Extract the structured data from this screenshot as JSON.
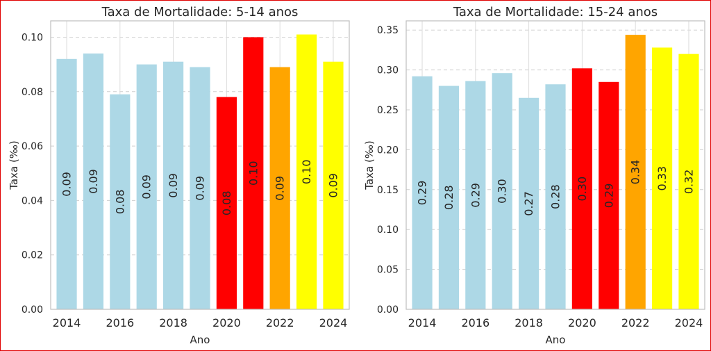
{
  "chart_data": [
    {
      "type": "bar",
      "title": "Taxa de Mortalidade: 5-14 anos",
      "xlabel": "Ano",
      "ylabel": "Taxa (‰)",
      "ylim": [
        0,
        0.106
      ],
      "yticks": [
        "0.00",
        "0.02",
        "0.04",
        "0.06",
        "0.08",
        "0.10"
      ],
      "ytick_values": [
        0,
        0.02,
        0.04,
        0.06,
        0.08,
        0.1
      ],
      "xticks": [
        "2014",
        "2016",
        "2018",
        "2020",
        "2022",
        "2024"
      ],
      "grid": true,
      "categories": [
        "2014",
        "2015",
        "2016",
        "2017",
        "2018",
        "2019",
        "2020",
        "2021",
        "2022",
        "2023",
        "2024"
      ],
      "values": [
        0.092,
        0.094,
        0.079,
        0.09,
        0.091,
        0.089,
        0.078,
        0.1,
        0.089,
        0.101,
        0.091
      ],
      "labels": [
        "0.09",
        "0.09",
        "0.08",
        "0.09",
        "0.09",
        "0.09",
        "0.08",
        "0.10",
        "0.09",
        "0.10",
        "0.09"
      ],
      "colors": [
        "#add8e6",
        "#add8e6",
        "#add8e6",
        "#add8e6",
        "#add8e6",
        "#add8e6",
        "#ff0000",
        "#ff0000",
        "#ffa500",
        "#ffff00",
        "#ffff00"
      ]
    },
    {
      "type": "bar",
      "title": "Taxa de Mortalidade: 15-24 anos",
      "xlabel": "Ano",
      "ylabel": "Taxa (‰)",
      "ylim": [
        0,
        0.3615
      ],
      "yticks": [
        "0.00",
        "0.05",
        "0.10",
        "0.15",
        "0.20",
        "0.25",
        "0.30",
        "0.35"
      ],
      "ytick_values": [
        0,
        0.05,
        0.1,
        0.15,
        0.2,
        0.25,
        0.3,
        0.35
      ],
      "xticks": [
        "2014",
        "2016",
        "2018",
        "2020",
        "2022",
        "2024"
      ],
      "grid": true,
      "categories": [
        "2014",
        "2015",
        "2016",
        "2017",
        "2018",
        "2019",
        "2020",
        "2021",
        "2022",
        "2023",
        "2024"
      ],
      "values": [
        0.292,
        0.28,
        0.286,
        0.296,
        0.265,
        0.282,
        0.302,
        0.285,
        0.344,
        0.328,
        0.32
      ],
      "labels": [
        "0.29",
        "0.28",
        "0.29",
        "0.30",
        "0.27",
        "0.28",
        "0.30",
        "0.29",
        "0.34",
        "0.33",
        "0.32"
      ],
      "colors": [
        "#add8e6",
        "#add8e6",
        "#add8e6",
        "#add8e6",
        "#add8e6",
        "#add8e6",
        "#ff0000",
        "#ff0000",
        "#ffa500",
        "#ffff00",
        "#ffff00"
      ]
    }
  ]
}
